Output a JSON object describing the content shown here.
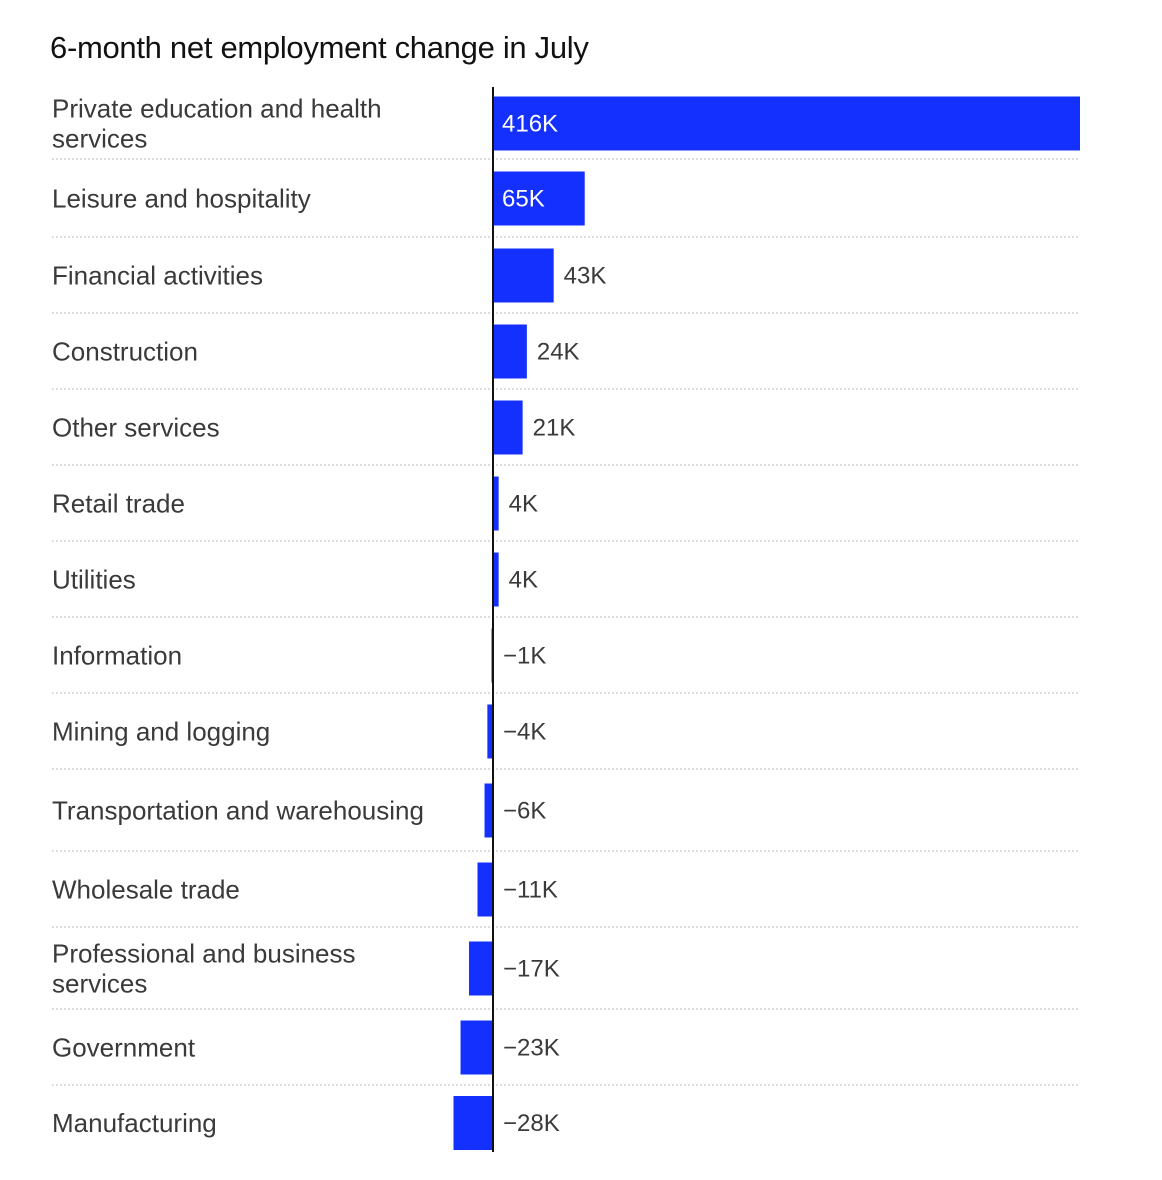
{
  "chart_data": {
    "type": "bar",
    "orientation": "horizontal",
    "title": "6-month net employment change in July",
    "bar_color": "#1430ff",
    "categories": [
      "Private education and health services",
      "Leisure and hospitality",
      "Financial activities",
      "Construction",
      "Other services",
      "Retail trade",
      "Utilities",
      "Information",
      "Mining and logging",
      "Transportation and warehousing",
      "Wholesale trade",
      "Professional and business services",
      "Government",
      "Manufacturing"
    ],
    "values": [
      416,
      65,
      43,
      24,
      21,
      4,
      4,
      -1,
      -4,
      -6,
      -11,
      -17,
      -23,
      -28
    ],
    "value_labels": [
      "416K",
      "65K",
      "43K",
      "24K",
      "21K",
      "4K",
      "4K",
      "−1K",
      "−4K",
      "−6K",
      "−11K",
      "−17K",
      "−23K",
      "−28K"
    ],
    "unit": "thousands of jobs",
    "grid": false
  }
}
